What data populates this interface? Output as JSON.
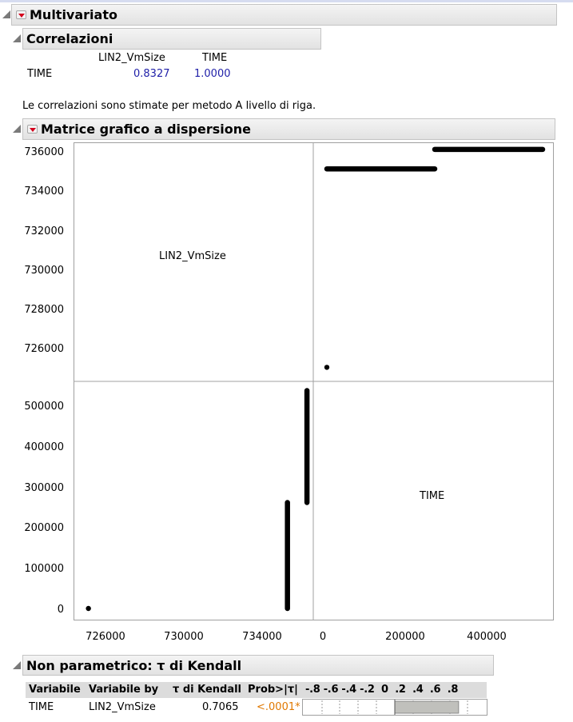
{
  "multivariato": {
    "title": "Multivariato"
  },
  "correlazioni": {
    "title": "Correlazioni",
    "columns": [
      "LIN2_VmSize",
      "TIME"
    ],
    "rows": [
      {
        "label": "TIME",
        "values": [
          "0.8327",
          "1.0000"
        ]
      }
    ],
    "note": "Le correlazioni sono stimate per metodo A livello di riga."
  },
  "matrice": {
    "title": "Matrice grafico a dispersione",
    "variables": [
      "LIN2_VmSize",
      "TIME"
    ],
    "y_ticks_upper": [
      "736000",
      "734000",
      "732000",
      "730000",
      "728000",
      "726000"
    ],
    "y_ticks_lower": [
      "500000",
      "400000",
      "300000",
      "200000",
      "100000",
      "0"
    ],
    "x_ticks_left": [
      "726000",
      "730000",
      "734000"
    ],
    "x_ticks_right": [
      "0",
      "200000",
      "400000"
    ]
  },
  "chart_data": {
    "type": "scatter",
    "title": "Matrice grafico a dispersione",
    "variables": [
      "LIN2_VmSize",
      "TIME"
    ],
    "axis_ranges": {
      "LIN2_VmSize": [
        724400,
        736400
      ],
      "TIME": [
        -20000,
        560000
      ]
    },
    "clusters": [
      {
        "TIME_from": 0,
        "TIME_to": 270000,
        "LIN2_VmSize": 735200
      },
      {
        "TIME_from": 270000,
        "TIME_to": 540000,
        "LIN2_VmSize": 736200
      },
      {
        "TIME_from": 0,
        "TIME_to": 0,
        "LIN2_VmSize": 725000
      },
      {
        "LIN2_VmSize_from": 735200,
        "LIN2_VmSize_to": 735200,
        "TIME_from": 0,
        "TIME_to": 265000
      },
      {
        "LIN2_VmSize_from": 736200,
        "LIN2_VmSize_to": 736200,
        "TIME_from": 265000,
        "TIME_to": 545000
      },
      {
        "LIN2_VmSize_from": 725000,
        "LIN2_VmSize_to": 725000,
        "TIME_from": 0,
        "TIME_to": 0
      }
    ]
  },
  "kendall": {
    "title": "Non parametrico: τ di Kendall",
    "headers": [
      "Variabile",
      "Variabile by",
      "τ di Kendall",
      "Prob>|τ|",
      "-.8 -.6 -.4 -.2  0  .2  .4  .6  .8"
    ],
    "row": {
      "var": "TIME",
      "by": "LIN2_VmSize",
      "tau": "0.7065",
      "prob": "<.0001*",
      "tau_value": 0.7065
    },
    "colors": {
      "prob": "#e07800",
      "bar": "#c0c0bc"
    }
  }
}
